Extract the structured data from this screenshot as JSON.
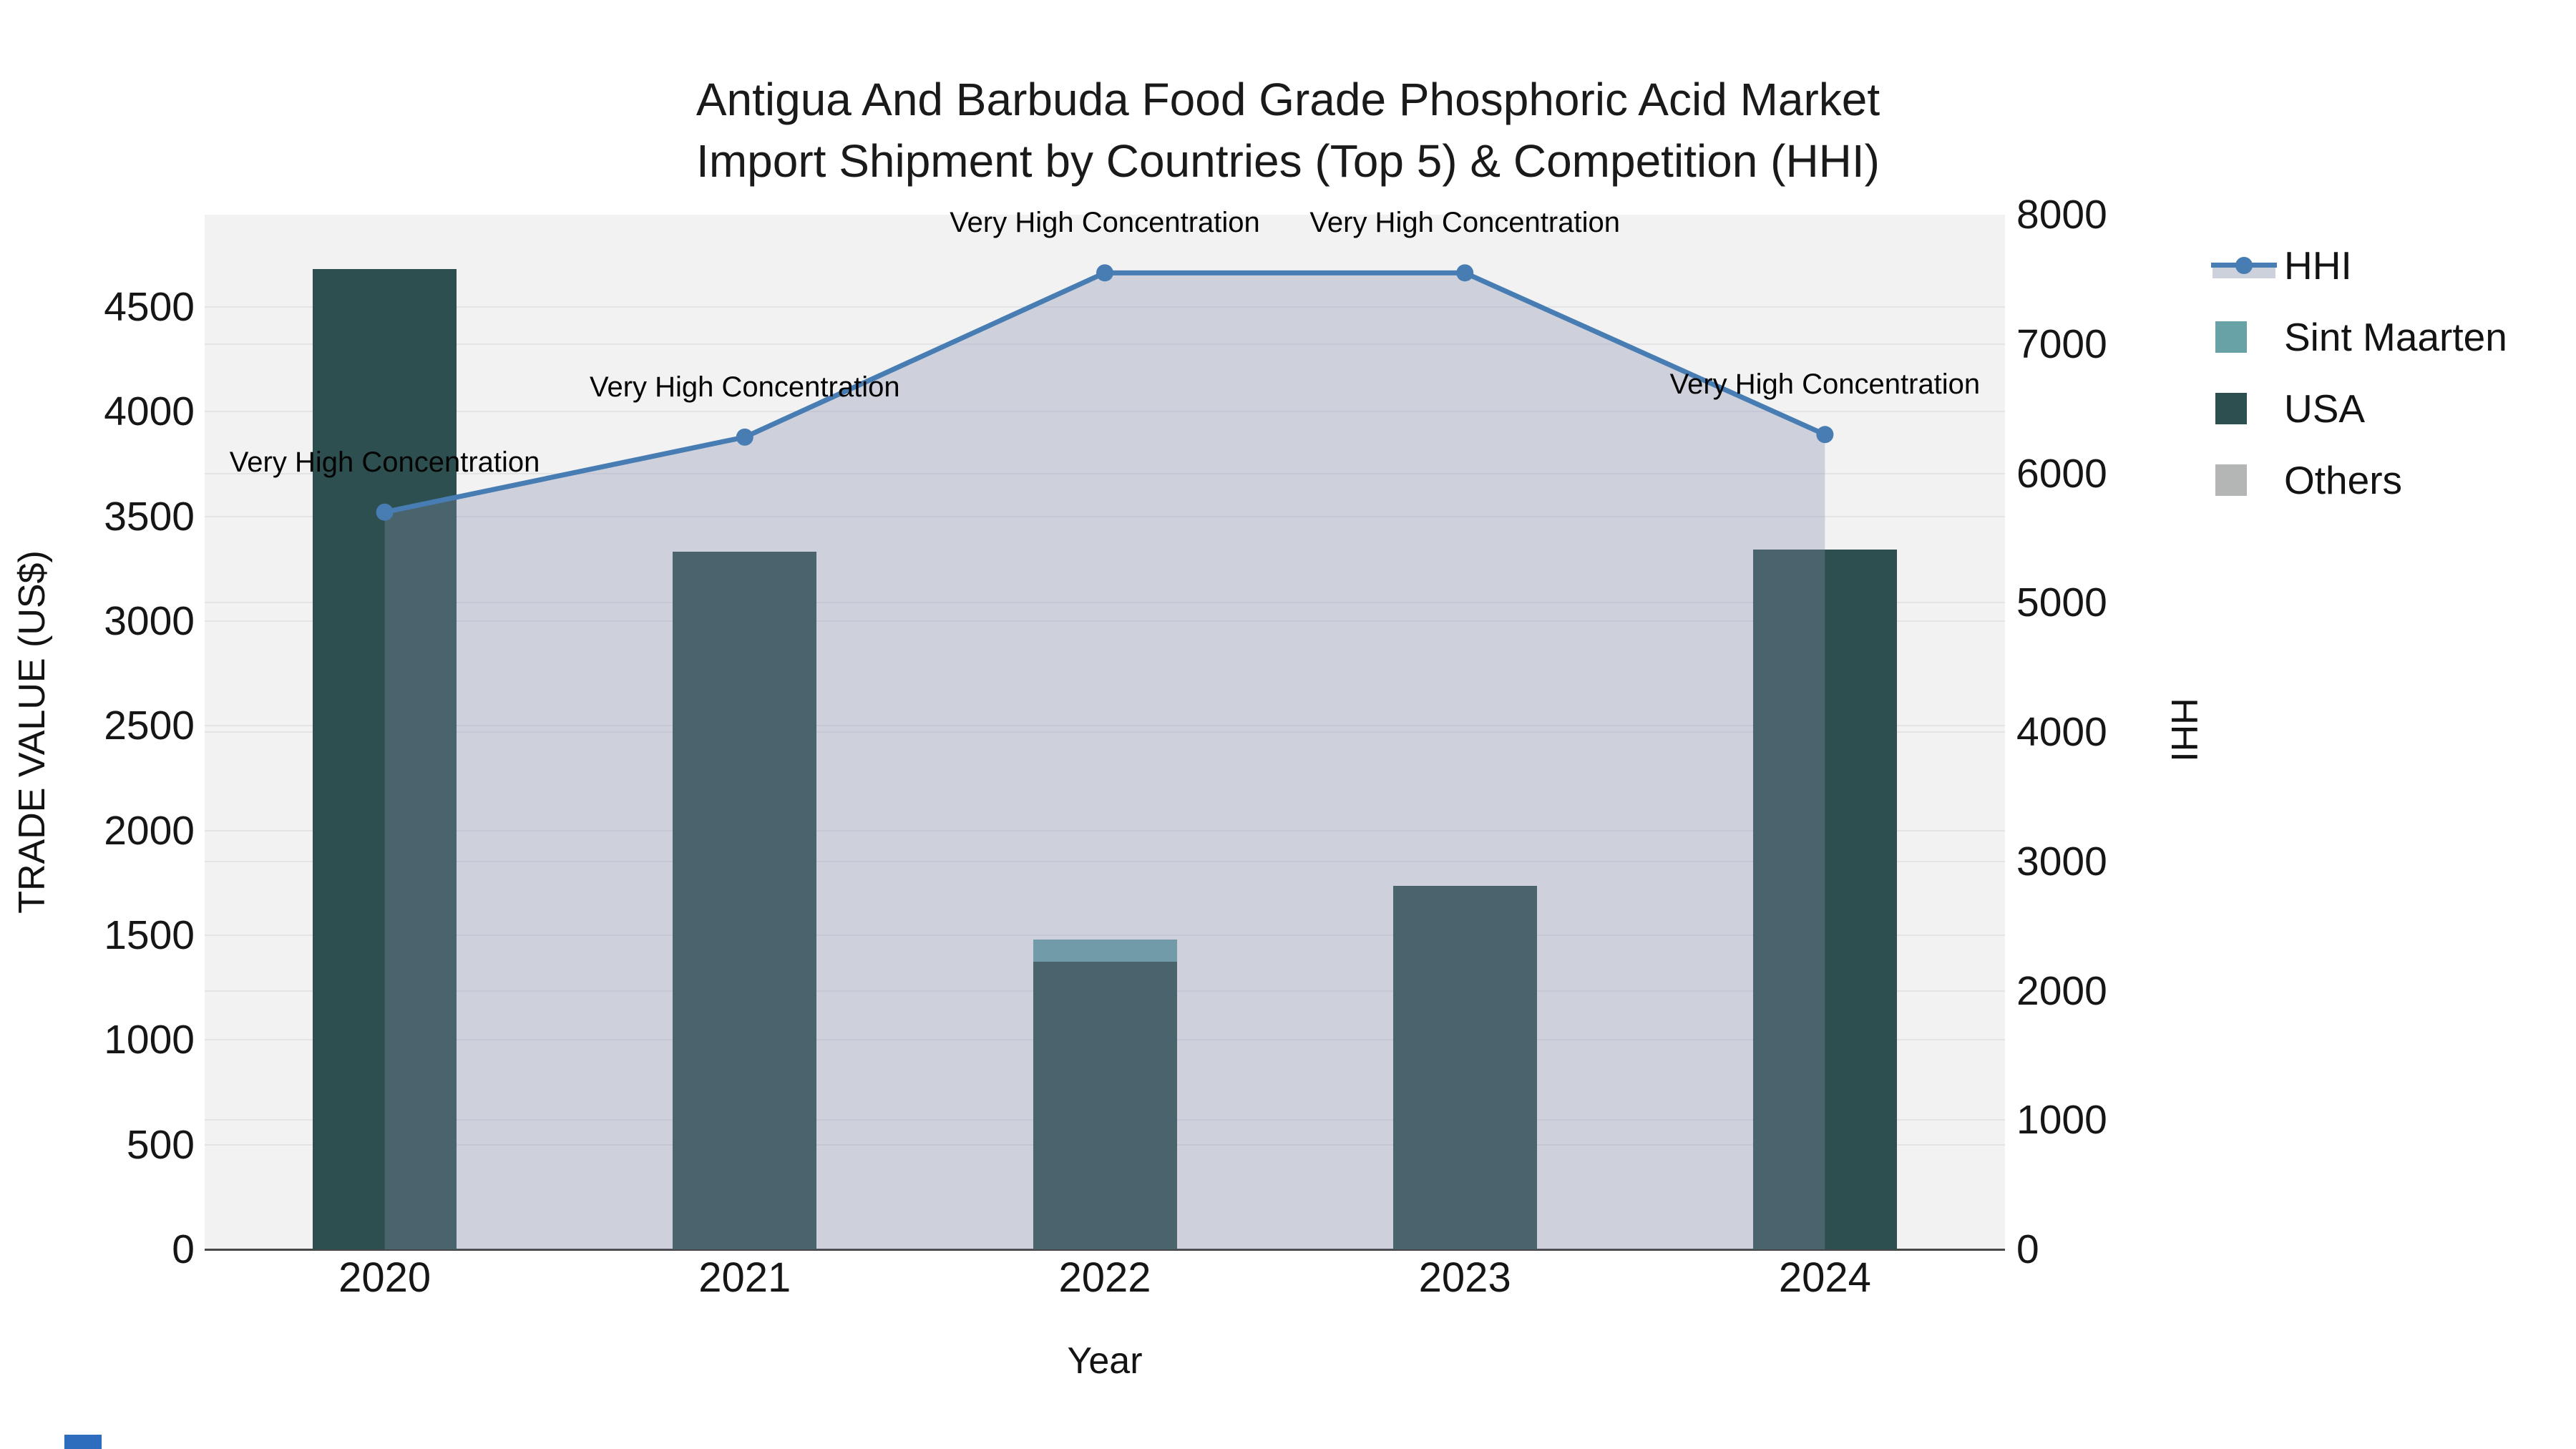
{
  "title": {
    "line1": "Antigua And Barbuda Food Grade Phosphoric Acid Market",
    "line2": "Import Shipment by Countries (Top 5) & Competition (HHI)"
  },
  "legend": {
    "items": [
      {
        "label": "HHI",
        "type": "line",
        "color": "#477db3"
      },
      {
        "label": "Sint Maarten",
        "type": "swatch",
        "color": "#68a2a6"
      },
      {
        "label": "USA",
        "type": "swatch",
        "color": "#2e4f4f"
      },
      {
        "label": "Others",
        "type": "swatch",
        "color": "#b4b6b5"
      }
    ]
  },
  "chart_data": {
    "type": "bar",
    "subtype": "stacked-bars-with-line-overlay",
    "title": "Antigua And Barbuda Food Grade Phosphoric Acid Market Import Shipment by Countries (Top 5) & Competition (HHI)",
    "categories": [
      "2020",
      "2021",
      "2022",
      "2023",
      "2024"
    ],
    "series": [
      {
        "name": "USA",
        "color": "#2e4f4f",
        "values": [
          4680,
          3330,
          1375,
          1735,
          3340
        ]
      },
      {
        "name": "Sint Maarten",
        "color": "#68a2a6",
        "values": [
          0,
          0,
          105,
          0,
          0
        ]
      },
      {
        "name": "Others",
        "color": "#b4b6b5",
        "values": [
          0,
          0,
          0,
          0,
          0
        ]
      }
    ],
    "line_series": {
      "name": "HHI",
      "axis": "right",
      "color": "#477db3",
      "fill_color": "rgba(133,144,173,0.33)",
      "values": [
        5700,
        6280,
        7550,
        7550,
        6300
      ]
    },
    "annotations": [
      "Very High Concentration",
      "Very High Concentration",
      "Very High Concentration",
      "Very High Concentration",
      "Very High Concentration"
    ],
    "xlabel": "Year",
    "left_axis": {
      "title": "TRADE VALUE (US$)",
      "ticks": [
        0,
        500,
        1000,
        1500,
        2000,
        2500,
        3000,
        3500,
        4000,
        4500
      ],
      "max": 4940
    },
    "right_axis": {
      "title": "HHI",
      "ticks": [
        0,
        1000,
        2000,
        3000,
        4000,
        5000,
        6000,
        7000,
        8000
      ],
      "max": 8000
    },
    "grid": true,
    "legend_position": "right",
    "plot_background": "#f2f2f3",
    "bar_width_fraction": 0.4
  }
}
